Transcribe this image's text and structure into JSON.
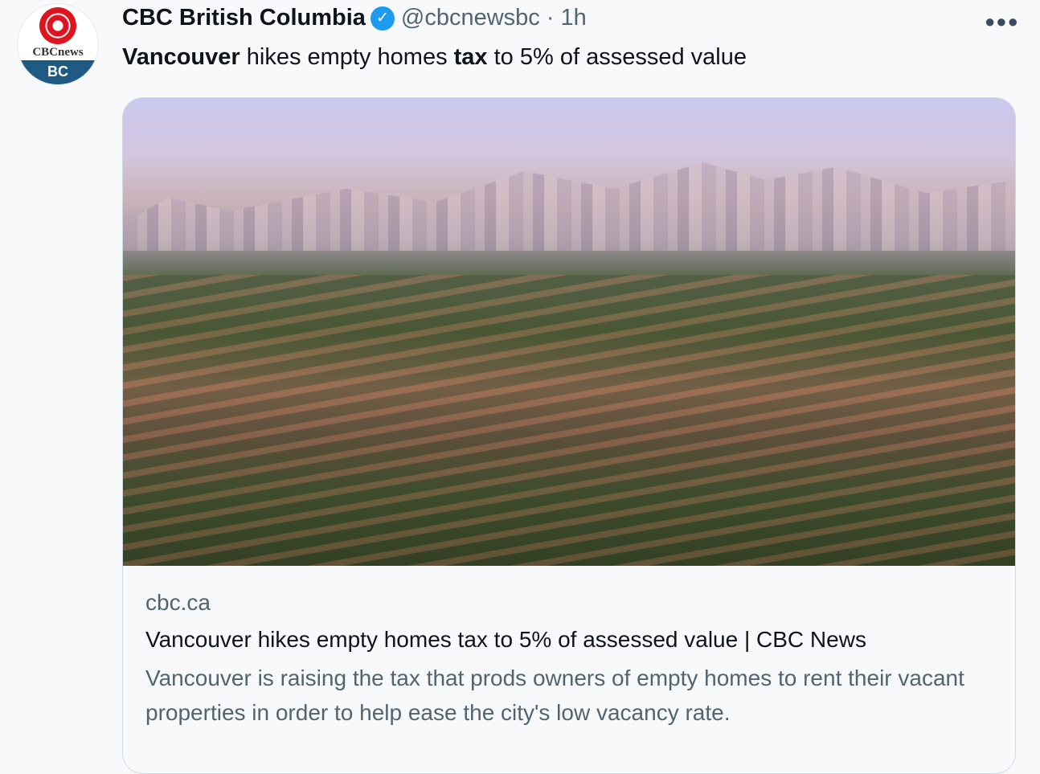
{
  "tweet": {
    "author_name": "CBC British Columbia",
    "verified_icon": "check-badge-icon",
    "handle": "@cbcnewsbc",
    "separator": "·",
    "time": "1h",
    "more_icon": "more-horizontal-icon",
    "avatar": {
      "wordmark": "CBCnews",
      "region": "BC"
    },
    "text_parts": [
      "Vancouver",
      " hikes empty homes ",
      "tax",
      " to 5% of assessed value"
    ]
  },
  "card": {
    "domain": "cbc.ca",
    "title": "Vancouver hikes empty homes tax to 5% of assessed value | CBC News",
    "description": "Vancouver is raising the tax that prods owners of empty homes to rent their vacant properties in order to help ease the city's low vacancy rate."
  },
  "colors": {
    "verified": "#1d9bf0",
    "secondary_text": "#536471",
    "cbc_red": "#e0141e",
    "cbc_blue": "#1f5a84"
  }
}
